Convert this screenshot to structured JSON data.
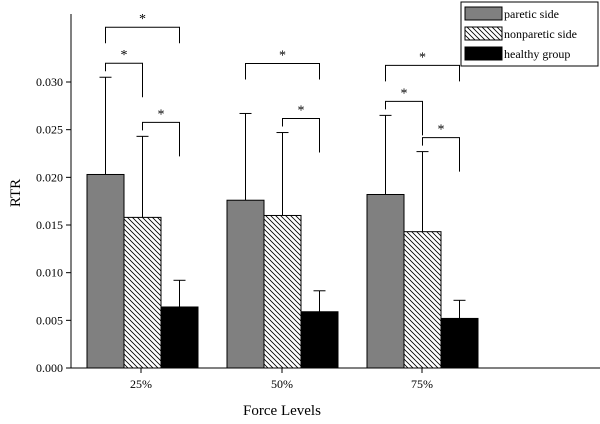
{
  "chart_data": {
    "type": "bar",
    "title": "",
    "xlabel": "Force Levels",
    "ylabel": "RTR",
    "categories": [
      "25%",
      "50%",
      "75%"
    ],
    "ylim": [
      0,
      0.033
    ],
    "yticks": [
      "0.000",
      "0.005",
      "0.010",
      "0.015",
      "0.020",
      "0.025",
      "0.030"
    ],
    "yticks_values": [
      0,
      0.005,
      0.01,
      0.015,
      0.02,
      0.025,
      0.03
    ],
    "grid": false,
    "error_bars": "upper",
    "legend_position": "top-right",
    "series": [
      {
        "name": "paretic side",
        "pattern": "solid",
        "color": "#808080",
        "values": [
          0.0203,
          0.0176,
          0.0182
        ],
        "errors": [
          0.0102,
          0.0091,
          0.0083
        ]
      },
      {
        "name": "nonparetic side",
        "pattern": "hatch",
        "color": "#ffffff",
        "values": [
          0.0158,
          0.016,
          0.0143
        ],
        "errors": [
          0.0085,
          0.0087,
          0.0084
        ]
      },
      {
        "name": "healthy group",
        "pattern": "solid",
        "color": "#000000",
        "values": [
          0.0064,
          0.0059,
          0.0052
        ],
        "errors": [
          0.0028,
          0.0022,
          0.0019
        ]
      }
    ],
    "significance": [
      {
        "category": 0,
        "from": 0,
        "to": 1,
        "label": "*"
      },
      {
        "category": 0,
        "from": 1,
        "to": 2,
        "label": "*"
      },
      {
        "category": 0,
        "from": 0,
        "to": 2,
        "label": "*"
      },
      {
        "category": 1,
        "from": 1,
        "to": 2,
        "label": "*"
      },
      {
        "category": 1,
        "from": 0,
        "to": 2,
        "label": "*"
      },
      {
        "category": 2,
        "from": 0,
        "to": 1,
        "label": "*"
      },
      {
        "category": 2,
        "from": 1,
        "to": 2,
        "label": "*"
      },
      {
        "category": 2,
        "from": 0,
        "to": 2,
        "label": "*"
      }
    ]
  }
}
